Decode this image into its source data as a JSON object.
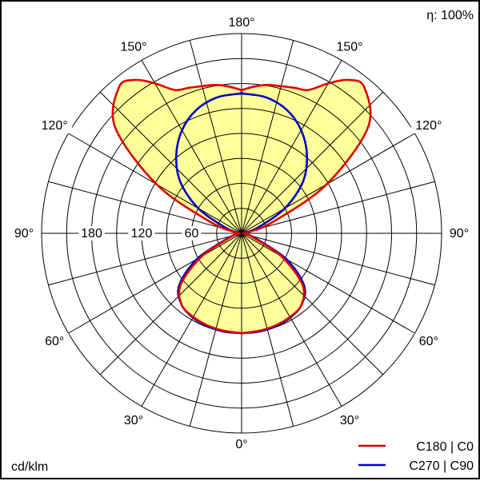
{
  "chart_data": {
    "type": "polar",
    "efficiency_label": "η: 100%",
    "unit_label": "cd/klm",
    "radial_max": 240,
    "radial_rings": [
      30,
      60,
      90,
      120,
      150,
      180,
      210,
      240
    ],
    "radial_tick_labels": [
      {
        "value": 60,
        "text": "60"
      },
      {
        "value": 120,
        "text": "120"
      },
      {
        "value": 180,
        "text": "180"
      }
    ],
    "angle_labels": [
      {
        "angle": 180,
        "side": "top",
        "text": "180°"
      },
      {
        "angle": 150,
        "side": "left",
        "text": "150°"
      },
      {
        "angle": 150,
        "side": "right",
        "text": "150°"
      },
      {
        "angle": 120,
        "side": "left",
        "text": "120°"
      },
      {
        "angle": 120,
        "side": "right",
        "text": "120°"
      },
      {
        "angle": 90,
        "side": "left",
        "text": "90°"
      },
      {
        "angle": 90,
        "side": "right",
        "text": "90°"
      },
      {
        "angle": 60,
        "side": "left",
        "text": "60°"
      },
      {
        "angle": 60,
        "side": "right",
        "text": "60°"
      },
      {
        "angle": 30,
        "side": "left",
        "text": "30°"
      },
      {
        "angle": 30,
        "side": "right",
        "text": "30°"
      },
      {
        "angle": 0,
        "side": "bottom",
        "text": "0°"
      }
    ],
    "series": [
      {
        "name": "C180 | C0",
        "color": "#e00000",
        "gamma": [
          0,
          10,
          20,
          30,
          40,
          50,
          60,
          70,
          80,
          90,
          100,
          110,
          120,
          130,
          140,
          145,
          150,
          155,
          160,
          165,
          170,
          175,
          180
        ],
        "left": [
          120,
          119,
          118,
          116,
          112,
          95,
          55,
          15,
          5,
          2,
          8,
          40,
          118,
          198,
          229,
          225,
          208,
          190,
          186,
          183,
          181,
          177,
          172
        ],
        "right": [
          120,
          119,
          118,
          116,
          112,
          95,
          55,
          15,
          5,
          2,
          8,
          40,
          118,
          198,
          229,
          225,
          208,
          190,
          186,
          183,
          181,
          177,
          172
        ]
      },
      {
        "name": "C270 | C90",
        "color": "#0000c8",
        "gamma": [
          0,
          10,
          20,
          30,
          40,
          50,
          60,
          70,
          80,
          90,
          100,
          110,
          120,
          130,
          140,
          150,
          160,
          170,
          180
        ],
        "left": [
          120,
          120,
          119,
          117,
          112,
          98,
          62,
          18,
          5,
          2,
          5,
          22,
          60,
          96,
          122,
          143,
          158,
          166,
          168
        ],
        "right": [
          120,
          120,
          119,
          117,
          112,
          98,
          62,
          18,
          5,
          2,
          5,
          22,
          60,
          96,
          122,
          143,
          158,
          166,
          168
        ]
      }
    ],
    "fill_color": "#ffff99",
    "grid": true,
    "legend_position": "bottom-right"
  }
}
